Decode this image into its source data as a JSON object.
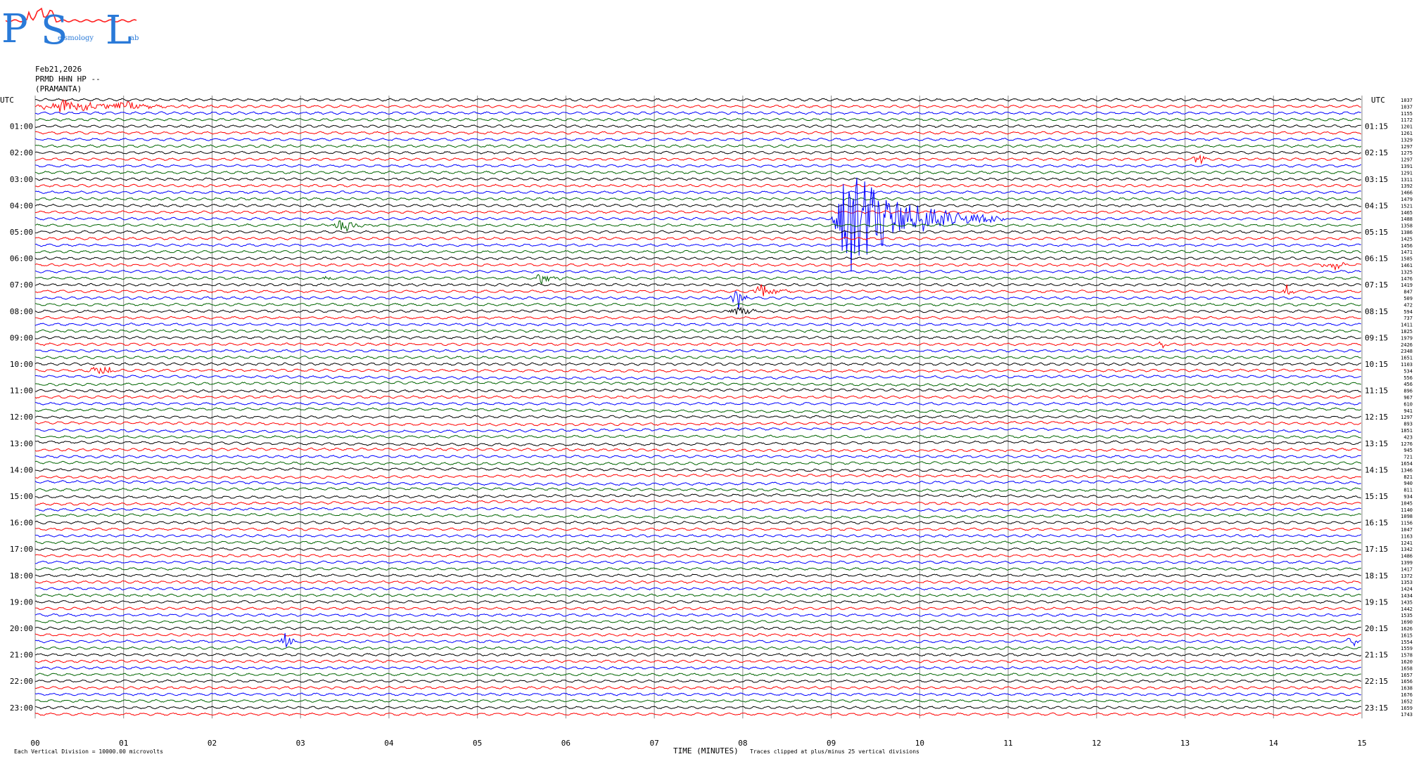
{
  "logo": {
    "letters": [
      "P",
      "S",
      "L"
    ],
    "subtext_1": "eismology",
    "subtext_2": "ab",
    "color_letters": "#2a7ad8",
    "color_wave": "#ff2020"
  },
  "header": {
    "date": "Feb21,2026",
    "station": "PRMD HHN HP --",
    "location": "(PRAMANTA)"
  },
  "chart_data": {
    "type": "line",
    "title": "",
    "left_axis_label": "UTC",
    "right_axis_label": "UTC",
    "xlabel": "TIME (MINUTES)",
    "xlim": [
      0,
      15
    ],
    "x_ticks": [
      "00",
      "01",
      "02",
      "03",
      "04",
      "05",
      "06",
      "07",
      "08",
      "09",
      "10",
      "11",
      "12",
      "13",
      "14",
      "15"
    ],
    "rows_per_hour": 4,
    "trace_colors": [
      "#000000",
      "#ff0000",
      "#0000ff",
      "#006400"
    ],
    "left_hour_labels": [
      "01:00",
      "02:00",
      "03:00",
      "04:00",
      "05:00",
      "06:00",
      "07:00",
      "08:00",
      "09:00",
      "10:00",
      "11:00",
      "12:00",
      "13:00",
      "14:00",
      "15:00",
      "16:00",
      "17:00",
      "18:00",
      "19:00",
      "20:00",
      "21:00",
      "22:00",
      "23:00"
    ],
    "right_hour_labels": [
      "01:15",
      "02:15",
      "03:15",
      "04:15",
      "05:15",
      "06:15",
      "07:15",
      "08:15",
      "09:15",
      "10:15",
      "11:15",
      "12:15",
      "13:15",
      "14:15",
      "15:15",
      "16:15",
      "17:15",
      "18:15",
      "19:15",
      "20:15",
      "21:15",
      "22:15",
      "23:15"
    ],
    "trace_numbers": [
      "1037",
      "1037",
      "1155",
      "1172",
      "1201",
      "1261",
      "1329",
      "1297",
      "1275",
      "1297",
      "1391",
      "1291",
      "1311",
      "1392",
      "1466",
      "1479",
      "1521",
      "1465",
      "1488",
      "1358",
      "1386",
      "1425",
      "1456",
      "1471",
      "1585",
      "1461",
      "1325",
      "1476",
      "1419",
      "847",
      "509",
      "472",
      "594",
      "737",
      "1411",
      "1825",
      "1979",
      "2426",
      "2348",
      "1651",
      "1103",
      "534",
      "556",
      "456",
      "896",
      "967",
      "610",
      "941",
      "1297",
      "893",
      "1851",
      "423",
      "1276",
      "945",
      "721",
      "1654",
      "1346",
      "821",
      "940",
      "811",
      "934",
      "1045",
      "1140",
      "1098",
      "1156",
      "1047",
      "1163",
      "1241",
      "1342",
      "1486",
      "1399",
      "1417",
      "1372",
      "1353",
      "1424",
      "1434",
      "1435",
      "1442",
      "1535",
      "1690",
      "1626",
      "1615",
      "1554",
      "1559",
      "1578",
      "1620",
      "1658",
      "1657",
      "1656",
      "1638",
      "1676",
      "1652",
      "1659",
      "1743"
    ],
    "events": [
      {
        "row": 1,
        "minute_start": 0.0,
        "minute_end": 2.0,
        "peak_minute": 0.3,
        "amplitude_divisions": 3
      },
      {
        "row": 1,
        "minute_start": 0.9,
        "minute_end": 1.3,
        "peak_minute": 1.05,
        "amplitude_divisions": 4
      },
      {
        "row": 18,
        "minute_start": 9.0,
        "minute_end": 11.0,
        "peak_minute": 9.2,
        "amplitude_divisions": 25
      },
      {
        "row": 9,
        "minute_start": 13.05,
        "minute_end": 13.3,
        "peak_minute": 13.15,
        "amplitude_divisions": 4
      },
      {
        "row": 19,
        "minute_start": 3.3,
        "minute_end": 3.9,
        "peak_minute": 3.5,
        "amplitude_divisions": 3
      },
      {
        "row": 27,
        "minute_start": 5.65,
        "minute_end": 6.0,
        "peak_minute": 5.72,
        "amplitude_divisions": 3
      },
      {
        "row": 27,
        "minute_start": 3.25,
        "minute_end": 3.4,
        "peak_minute": 3.3,
        "amplitude_divisions": 2
      },
      {
        "row": 29,
        "minute_start": 8.1,
        "minute_end": 8.6,
        "peak_minute": 8.2,
        "amplitude_divisions": 4
      },
      {
        "row": 30,
        "minute_start": 7.85,
        "minute_end": 8.1,
        "peak_minute": 7.95,
        "amplitude_divisions": 5
      },
      {
        "row": 32,
        "minute_start": 7.8,
        "minute_end": 8.4,
        "peak_minute": 7.95,
        "amplitude_divisions": 2
      },
      {
        "row": 41,
        "minute_start": 0.5,
        "minute_end": 0.9,
        "peak_minute": 0.85,
        "amplitude_divisions": 2
      },
      {
        "row": 82,
        "minute_start": 2.75,
        "minute_end": 2.95,
        "peak_minute": 2.85,
        "amplitude_divisions": 6
      },
      {
        "row": 82,
        "minute_start": 14.8,
        "minute_end": 15.0,
        "peak_minute": 14.9,
        "amplitude_divisions": 3
      },
      {
        "row": 25,
        "minute_start": 14.5,
        "minute_end": 15.0,
        "peak_minute": 14.7,
        "amplitude_divisions": 2
      },
      {
        "row": 29,
        "minute_start": 14.1,
        "minute_end": 14.25,
        "peak_minute": 14.15,
        "amplitude_divisions": 3
      },
      {
        "row": 37,
        "minute_start": 12.7,
        "minute_end": 12.8,
        "peak_minute": 12.75,
        "amplitude_divisions": 3
      }
    ]
  },
  "footer": {
    "scale_note": "Each Vertical Division = 10000.00 microvolts",
    "clip_note": "Traces clipped at plus/minus 25 vertical divisions"
  }
}
